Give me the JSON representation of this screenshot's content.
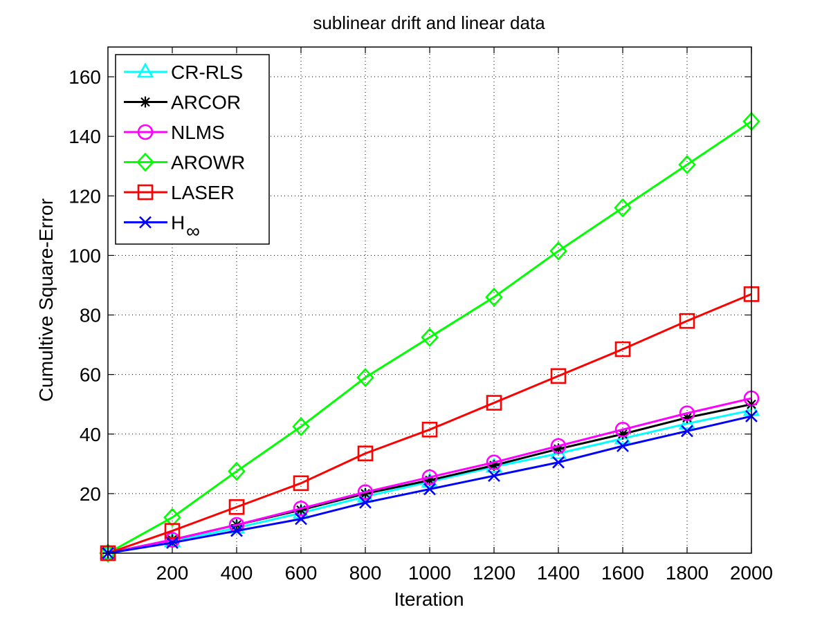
{
  "chart_data": {
    "type": "line",
    "title": "sublinear drift and linear data",
    "xlabel": "Iteration",
    "ylabel": "Cumultive Square-Error",
    "xlim": [
      0,
      2000
    ],
    "ylim": [
      0,
      170
    ],
    "xticks": [
      200,
      400,
      600,
      800,
      1000,
      1200,
      1400,
      1600,
      1800,
      2000
    ],
    "yticks": [
      20,
      40,
      60,
      80,
      100,
      120,
      140,
      160
    ],
    "grid": true,
    "legend_position": "top-left",
    "x": [
      0,
      200,
      400,
      600,
      800,
      1000,
      1200,
      1400,
      1600,
      1800,
      2000
    ],
    "series": [
      {
        "name": "CR-RLS",
        "color": "#00ffff",
        "marker": "triangle",
        "values": [
          0,
          4,
          8.5,
          13.5,
          19,
          24,
          29,
          33.5,
          38.5,
          43.5,
          48
        ]
      },
      {
        "name": "ARCOR",
        "color": "#000000",
        "marker": "asterisk",
        "values": [
          0,
          4.5,
          9.5,
          14.5,
          20,
          24.5,
          29.5,
          35,
          40,
          45.5,
          50
        ]
      },
      {
        "name": "NLMS",
        "color": "#ff00ff",
        "marker": "circle",
        "values": [
          0,
          4.5,
          9.5,
          15,
          20.5,
          25.5,
          30.5,
          36,
          41.5,
          47,
          52
        ]
      },
      {
        "name": "AROWR",
        "color": "#00ff00",
        "marker": "diamond",
        "values": [
          0,
          12,
          27.5,
          42.5,
          59,
          72.5,
          86,
          101.5,
          116,
          130.5,
          145
        ]
      },
      {
        "name": "LASER",
        "color": "#ff0000",
        "marker": "square",
        "values": [
          0,
          7.5,
          15.5,
          23.5,
          33.5,
          41.5,
          50.5,
          59.5,
          68.5,
          78,
          87
        ]
      },
      {
        "name": "H",
        "name_subscript": "∞",
        "color": "#0000ff",
        "marker": "x",
        "values": [
          0,
          3.5,
          7.5,
          11.5,
          17,
          21.5,
          26,
          30.5,
          36,
          41,
          46
        ]
      }
    ]
  }
}
